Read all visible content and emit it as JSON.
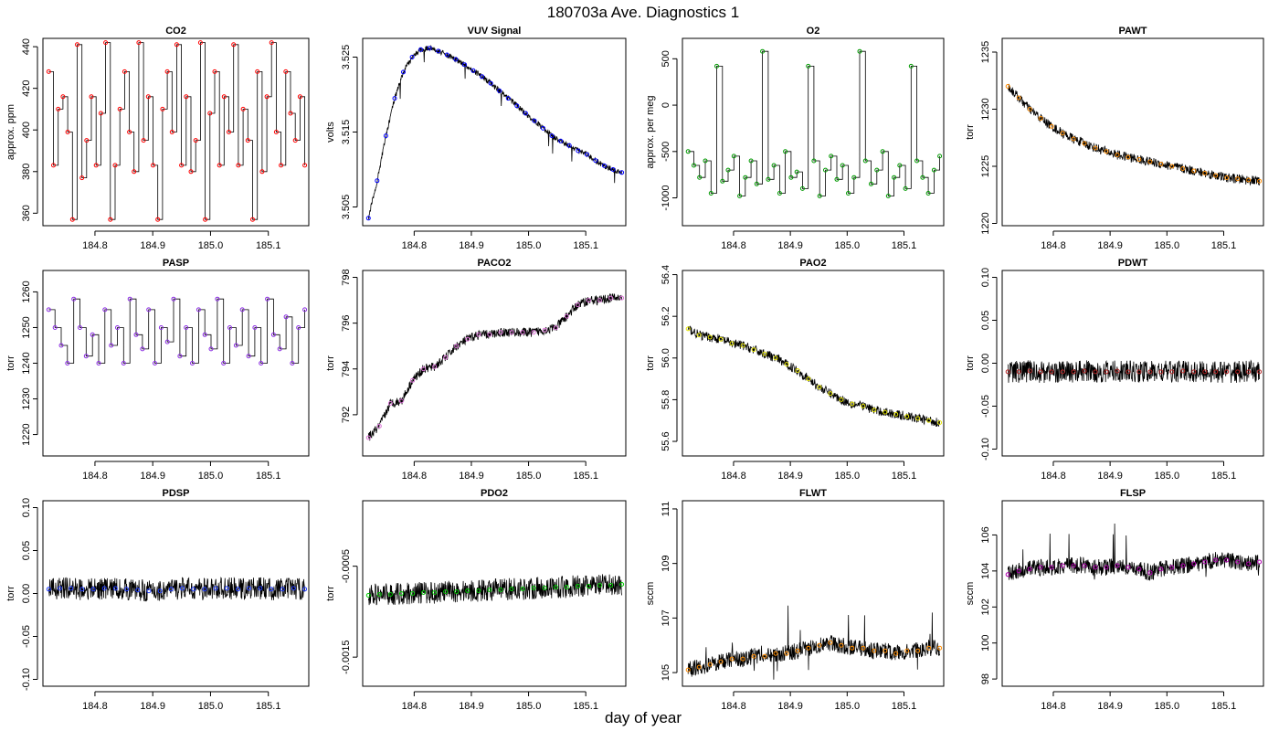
{
  "figure": {
    "title": "180703a   Ave. Diagnostics 1",
    "xlabel": "day of year"
  },
  "chart_data": [
    {
      "type": "line",
      "title": "CO2",
      "ylabel": "approx. ppm",
      "xlim": [
        184.71,
        185.17
      ],
      "ylim": [
        354,
        444
      ],
      "x_ticks": [
        "184.8",
        "184.9",
        "185.0",
        "185.1"
      ],
      "y_ticks": [
        "360",
        "380",
        "400",
        "420",
        "440"
      ],
      "series": [
        {
          "pattern": "steps",
          "values": [
            428,
            383,
            410,
            416,
            399,
            357,
            441,
            377,
            395,
            416,
            383,
            408,
            442,
            357,
            383,
            410,
            428,
            399,
            380,
            442,
            395,
            416,
            383,
            357,
            410,
            428,
            399,
            441,
            383,
            416,
            380,
            395,
            442,
            357,
            408,
            428,
            383,
            416,
            399,
            441,
            383,
            410,
            395,
            357,
            428,
            380,
            416,
            442,
            399,
            383,
            428,
            408,
            395,
            416,
            383
          ],
          "color": "#000000",
          "marker_color": "#ff0000"
        }
      ]
    },
    {
      "type": "line",
      "title": "VUV Signal",
      "ylabel": "volts",
      "xlim": [
        184.71,
        185.17
      ],
      "ylim": [
        3.5025,
        3.5275
      ],
      "x_ticks": [
        "184.8",
        "184.9",
        "185.0",
        "185.1"
      ],
      "y_ticks": [
        "3.505",
        "3.515",
        "3.525"
      ],
      "series": [
        {
          "pattern": "vuv",
          "values": [
            3.5035,
            3.5085,
            3.5145,
            3.5195,
            3.523,
            3.525,
            3.526,
            3.5262,
            3.5258,
            3.5253,
            3.5247,
            3.524,
            3.5232,
            3.5224,
            3.5215,
            3.5205,
            3.5195,
            3.5185,
            3.5175,
            3.5165,
            3.5155,
            3.5145,
            3.5138,
            3.5132,
            3.5125,
            3.512,
            3.5112,
            3.5105,
            3.51,
            3.5096
          ],
          "color": "#000000",
          "marker_color": "#0000ff"
        }
      ]
    },
    {
      "type": "line",
      "title": "O2",
      "ylabel": "approx. per meg",
      "xlim": [
        184.71,
        185.17
      ],
      "ylim": [
        -1300,
        720
      ],
      "x_ticks": [
        "184.8",
        "184.9",
        "185.0",
        "185.1"
      ],
      "y_ticks": [
        "-1000",
        "-500",
        "0",
        "500"
      ],
      "series": [
        {
          "pattern": "steps",
          "values": [
            -500,
            -650,
            -780,
            -600,
            -950,
            420,
            -820,
            -700,
            -550,
            -980,
            -780,
            -600,
            -850,
            580,
            -800,
            -650,
            -950,
            -500,
            -780,
            -720,
            -900,
            420,
            -600,
            -980,
            -700,
            -550,
            -800,
            -650,
            -950,
            -780,
            580,
            -600,
            -850,
            -700,
            -500,
            -980,
            -780,
            -650,
            -900,
            420,
            -600,
            -780,
            -950,
            -700,
            -550
          ],
          "color": "#000000",
          "marker_color": "#009900"
        }
      ]
    },
    {
      "type": "line",
      "title": "PAWT",
      "ylabel": "torr",
      "xlim": [
        184.71,
        185.17
      ],
      "ylim": [
        1219.8,
        1236.2
      ],
      "x_ticks": [
        "184.8",
        "184.9",
        "185.0",
        "185.1"
      ],
      "y_ticks": [
        "1220",
        "1225",
        "1230",
        "1235"
      ],
      "series": [
        {
          "pattern": "drift",
          "values": [
            1232.0,
            1231.0,
            1230.0,
            1229.2,
            1228.5,
            1227.9,
            1227.4,
            1227.0,
            1226.6,
            1226.3,
            1226.0,
            1225.8,
            1225.6,
            1225.4,
            1225.2,
            1225.0,
            1224.8,
            1224.6,
            1224.4,
            1224.2,
            1224.0,
            1223.9,
            1223.8,
            1223.7
          ],
          "color": "#000000",
          "marker_color": "#ff8c00"
        }
      ]
    },
    {
      "type": "line",
      "title": "PASP",
      "ylabel": "torr",
      "xlim": [
        184.71,
        185.17
      ],
      "ylim": [
        1214,
        1266
      ],
      "x_ticks": [
        "184.8",
        "184.9",
        "185.0",
        "185.1"
      ],
      "y_ticks": [
        "1220",
        "1230",
        "1240",
        "1250",
        "1260"
      ],
      "series": [
        {
          "pattern": "steps",
          "values": [
            1255,
            1250,
            1245,
            1240,
            1258,
            1250,
            1242,
            1248,
            1240,
            1255,
            1245,
            1250,
            1240,
            1258,
            1248,
            1244,
            1255,
            1240,
            1250,
            1246,
            1258,
            1242,
            1250,
            1240,
            1255,
            1248,
            1244,
            1258,
            1240,
            1250,
            1245,
            1255,
            1242,
            1250,
            1240,
            1258,
            1248,
            1244,
            1253,
            1240,
            1250,
            1255
          ],
          "color": "#000000",
          "marker_color": "#8a2be2"
        }
      ]
    },
    {
      "type": "line",
      "title": "PACO2",
      "ylabel": "torr",
      "xlim": [
        184.71,
        185.17
      ],
      "ylim": [
        790.2,
        798.3
      ],
      "x_ticks": [
        "184.8",
        "184.9",
        "185.0",
        "185.1"
      ],
      "y_ticks": [
        "792",
        "794",
        "796",
        "798"
      ],
      "series": [
        {
          "pattern": "drift",
          "values": [
            791.0,
            791.5,
            792.5,
            792.6,
            793.5,
            794.0,
            794.1,
            794.5,
            795.0,
            795.3,
            795.5,
            795.5,
            795.6,
            795.6,
            795.6,
            795.6,
            795.7,
            795.8,
            796.3,
            796.8,
            797.0,
            797.0,
            797.1,
            797.1
          ],
          "color": "#000000",
          "marker_color": "#da70d6"
        }
      ]
    },
    {
      "type": "line",
      "title": "PAO2",
      "ylabel": "torr",
      "xlim": [
        184.71,
        185.17
      ],
      "ylim": [
        55.53,
        56.42
      ],
      "x_ticks": [
        "184.8",
        "184.9",
        "185.0",
        "185.1"
      ],
      "y_ticks": [
        "55.6",
        "55.8",
        "56.0",
        "56.2",
        "56.4"
      ],
      "series": [
        {
          "pattern": "drift",
          "values": [
            56.14,
            56.11,
            56.1,
            56.09,
            56.07,
            56.06,
            56.04,
            56.02,
            56.0,
            55.97,
            55.94,
            55.9,
            55.86,
            55.83,
            55.8,
            55.78,
            55.77,
            55.75,
            55.74,
            55.73,
            55.72,
            55.71,
            55.7,
            55.69
          ],
          "color": "#000000",
          "marker_color": "#e5e500"
        }
      ]
    },
    {
      "type": "line",
      "title": "PDWT",
      "ylabel": "torr",
      "xlim": [
        184.71,
        185.17
      ],
      "ylim": [
        -0.108,
        0.108
      ],
      "x_ticks": [
        "184.8",
        "184.9",
        "185.0",
        "185.1"
      ],
      "y_ticks": [
        "-0.10",
        "-0.05",
        "0.00",
        "0.05",
        "0.10"
      ],
      "series": [
        {
          "pattern": "flat",
          "values": [
            -0.01,
            -0.01,
            -0.009,
            -0.01,
            -0.01,
            -0.01,
            -0.01,
            -0.009,
            -0.01,
            -0.01,
            -0.009,
            -0.01,
            -0.01,
            -0.01,
            -0.01,
            -0.01,
            -0.009,
            -0.01,
            -0.01,
            -0.01,
            -0.01,
            -0.01,
            -0.01,
            -0.01
          ],
          "color": "#000000",
          "marker_color": "#b22222"
        }
      ]
    },
    {
      "type": "line",
      "title": "PDSP",
      "ylabel": "torr",
      "xlim": [
        184.71,
        185.17
      ],
      "ylim": [
        -0.108,
        0.108
      ],
      "x_ticks": [
        "184.8",
        "184.9",
        "185.0",
        "185.1"
      ],
      "y_ticks": [
        "-0.10",
        "-0.05",
        "0.00",
        "0.05",
        "0.10"
      ],
      "series": [
        {
          "pattern": "flat",
          "values": [
            0.005,
            0.006,
            0.006,
            0.005,
            0.005,
            0.006,
            0.006,
            0.005,
            0.004,
            0.003,
            0.003,
            0.005,
            0.006,
            0.005,
            0.005,
            0.006,
            0.006,
            0.005,
            0.006,
            0.006,
            0.005,
            0.005,
            0.006,
            0.005
          ],
          "color": "#000000",
          "marker_color": "#1e3cff"
        }
      ]
    },
    {
      "type": "line",
      "title": "PDO2",
      "ylabel": "torr",
      "xlim": [
        184.71,
        185.17
      ],
      "ylim": [
        -0.00182,
        0.00022
      ],
      "x_ticks": [
        "184.8",
        "184.9",
        "185.0",
        "185.1"
      ],
      "y_ticks": [
        "-0.0015",
        "-0.0005"
      ],
      "series": [
        {
          "pattern": "flat",
          "values": [
            -0.00082,
            -0.00081,
            -0.00081,
            -0.0008,
            -0.0008,
            -0.00079,
            -0.00079,
            -0.00078,
            -0.00078,
            -0.00077,
            -0.00077,
            -0.00076,
            -0.00076,
            -0.00075,
            -0.00075,
            -0.00074,
            -0.00074,
            -0.00073,
            -0.00073,
            -0.00072,
            -0.00072,
            -0.00071,
            -0.00071,
            -0.0007
          ],
          "color": "#000000",
          "marker_color": "#00cc00"
        }
      ]
    },
    {
      "type": "line",
      "title": "FLWT",
      "ylabel": "sccm",
      "xlim": [
        184.71,
        185.17
      ],
      "ylim": [
        104.5,
        111.3
      ],
      "x_ticks": [
        "184.8",
        "184.9",
        "185.0",
        "185.1"
      ],
      "y_ticks": [
        "105",
        "107",
        "109",
        "111"
      ],
      "series": [
        {
          "pattern": "noisy",
          "values": [
            105.1,
            105.2,
            105.3,
            105.4,
            105.5,
            105.5,
            105.6,
            105.6,
            105.7,
            105.7,
            105.8,
            105.9,
            106.0,
            106.1,
            106.0,
            105.9,
            105.9,
            105.8,
            105.8,
            105.7,
            105.8,
            105.8,
            105.9,
            105.9
          ],
          "color": "#000000",
          "marker_color": "#ff8c00"
        }
      ]
    },
    {
      "type": "line",
      "title": "FLSP",
      "ylabel": "sccm",
      "xlim": [
        184.71,
        185.17
      ],
      "ylim": [
        97.6,
        107.9
      ],
      "x_ticks": [
        "184.8",
        "184.9",
        "185.0",
        "185.1"
      ],
      "y_ticks": [
        "98",
        "100",
        "102",
        "104",
        "106"
      ],
      "series": [
        {
          "pattern": "noisy",
          "values": [
            103.8,
            104.0,
            104.1,
            104.2,
            104.2,
            104.3,
            104.3,
            104.3,
            104.2,
            104.2,
            104.3,
            104.2,
            104.1,
            103.9,
            104.1,
            104.2,
            104.3,
            104.4,
            104.5,
            104.6,
            104.6,
            104.5,
            104.4,
            104.5
          ],
          "color": "#000000",
          "marker_color": "#b000b0"
        }
      ]
    }
  ]
}
